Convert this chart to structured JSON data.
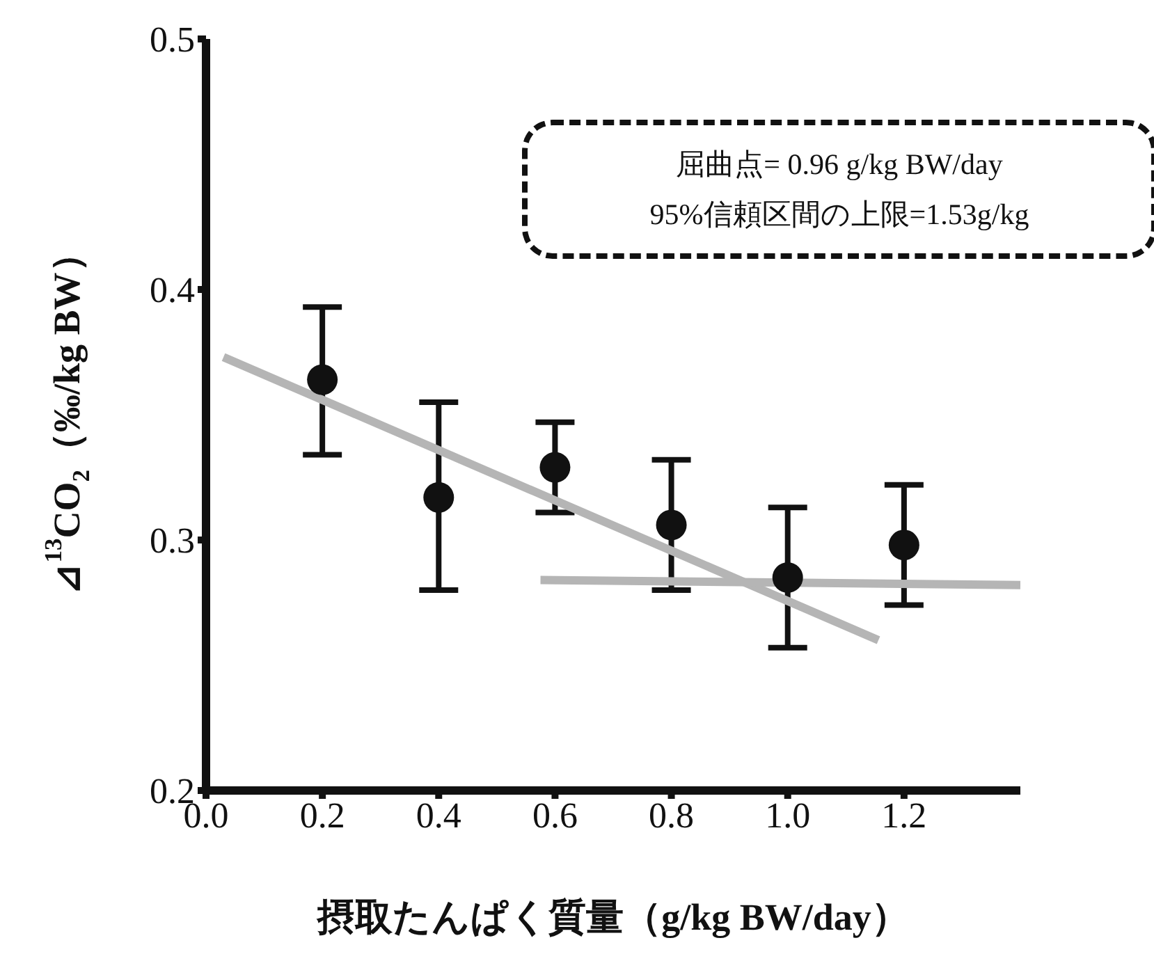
{
  "chart_data": {
    "type": "scatter",
    "xlabel": "摂取たんぱく質量（g/kg BW/day）",
    "ylabel": "⊿$^{13}$CO$_{2}$（‰/kg BW）",
    "annotations": [
      "屈曲点= 0.96 g/kg BW/day",
      "95%信頼区間の上限=1.53g/kg"
    ],
    "xlim": [
      0,
      1.4
    ],
    "xticks": [
      {
        "value": 0,
        "label": "0.0"
      },
      0.2,
      0.4,
      0.6,
      0.8,
      {
        "value": 1,
        "label": "1.0"
      },
      1.2
    ],
    "ylim": [
      0.2,
      0.5
    ],
    "yticks": [
      0.2,
      0.3,
      0.4,
      0.5
    ],
    "grid": false,
    "legend": false,
    "series": [
      {
        "marker": "circle",
        "color": "#111111",
        "x": [
          0.2,
          0.4,
          0.6,
          0.8,
          1.0,
          1.2
        ],
        "values": [
          0.364,
          0.317,
          0.329,
          0.306,
          0.285,
          0.298
        ],
        "errors": [
          [
            0.334,
            0.393
          ],
          [
            0.28,
            0.355
          ],
          [
            0.311,
            0.347
          ],
          [
            0.28,
            0.332
          ],
          [
            0.257,
            0.313
          ],
          [
            0.274,
            0.322
          ]
        ]
      },
      {
        "type": "line",
        "color": "#b5b5b5",
        "x": [
          0.03,
          1.156
        ],
        "values": [
          0.373,
          0.26
        ]
      },
      {
        "type": "line",
        "color": "#b5b5b5",
        "x": [
          0.575,
          1.4
        ],
        "values": [
          0.284,
          0.282
        ]
      }
    ]
  }
}
